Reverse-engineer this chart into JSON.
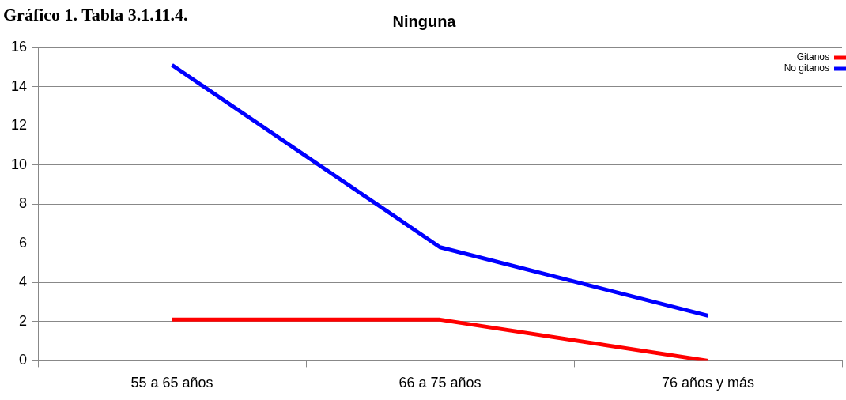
{
  "chart_data": {
    "type": "line",
    "title": "Ninguna",
    "annotations": [
      "Gráfico 1. Tabla 3.1.11.4."
    ],
    "categories": [
      "55 a 65 años",
      "66 a 75 años",
      "76 años y más"
    ],
    "series": [
      {
        "name": "Gitanos",
        "color": "#ff0000",
        "values": [
          2.1,
          2.1,
          0
        ]
      },
      {
        "name": "No gitanos",
        "color": "#0000ff",
        "values": [
          15.1,
          5.8,
          2.3
        ]
      }
    ],
    "ylim": [
      0,
      16
    ],
    "yticks": [
      0,
      2,
      4,
      6,
      8,
      10,
      12,
      14,
      16
    ],
    "grid": "y",
    "legend": "top right",
    "marker": "none",
    "line_style": "solid"
  }
}
